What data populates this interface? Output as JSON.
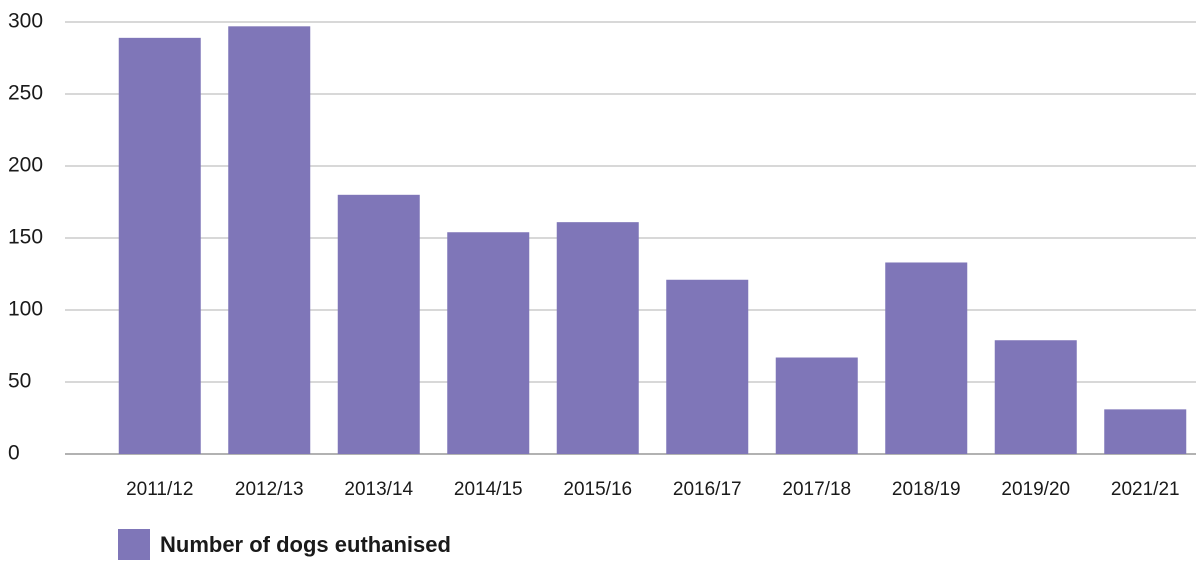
{
  "chart_data": {
    "type": "bar",
    "categories": [
      "2011/12",
      "2012/13",
      "2013/14",
      "2014/15",
      "2015/16",
      "2016/17",
      "2017/18",
      "2018/19",
      "2019/20",
      "2021/21"
    ],
    "series": [
      {
        "name": "Number of dogs euthanised",
        "color": "#7f76b8",
        "values": [
          289,
          297,
          180,
          154,
          161,
          121,
          67,
          133,
          79,
          31
        ]
      }
    ],
    "ylim": [
      0,
      300
    ],
    "yticks": [
      0,
      50,
      100,
      150,
      200,
      250,
      300
    ],
    "grid": true
  }
}
